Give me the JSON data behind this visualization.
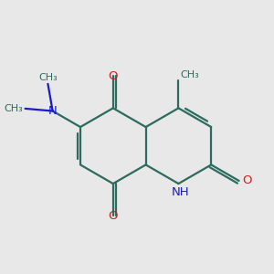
{
  "background_color": "#e8e8e8",
  "bond_color": "#2d6b5e",
  "n_color": "#1a1acc",
  "o_color": "#cc2020",
  "line_width": 1.6,
  "figsize": [
    3.0,
    3.0
  ],
  "dpi": 100,
  "bl": 0.85,
  "mx": 5.0,
  "my": 5.1,
  "xlim": [
    2.2,
    7.8
  ],
  "ylim": [
    2.8,
    7.8
  ]
}
